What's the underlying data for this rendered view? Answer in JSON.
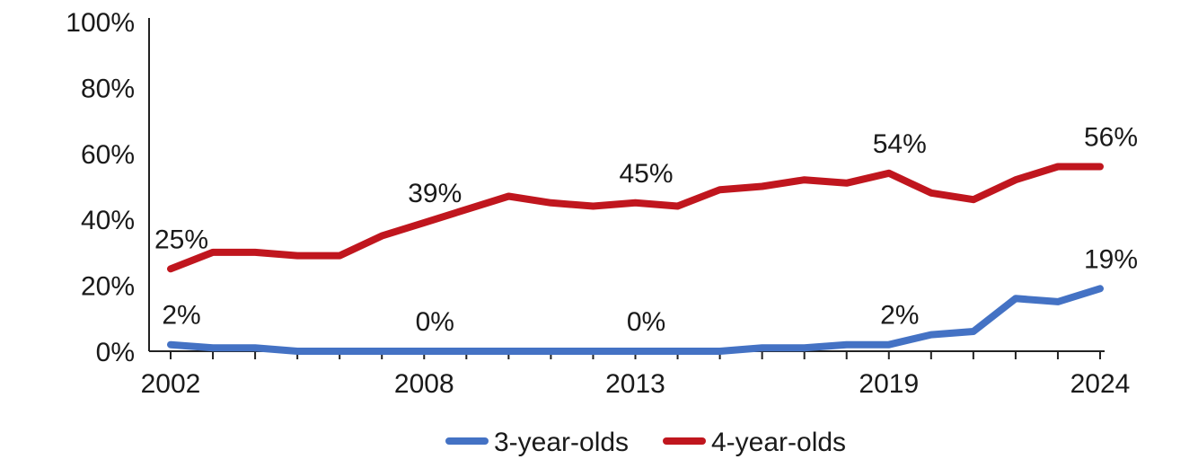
{
  "chart_data": {
    "type": "line",
    "title": "",
    "xlabel": "",
    "ylabel": "",
    "x": [
      2002,
      2003,
      2004,
      2005,
      2006,
      2007,
      2008,
      2009,
      2010,
      2011,
      2012,
      2013,
      2014,
      2015,
      2016,
      2017,
      2018,
      2019,
      2020,
      2021,
      2022,
      2023,
      2024
    ],
    "x_tick_labels": [
      "2002",
      "2008",
      "2013",
      "2019",
      "2024"
    ],
    "x_tick_values": [
      2002,
      2008,
      2013,
      2019,
      2024
    ],
    "ylim": [
      0,
      100
    ],
    "y_ticks": [
      0,
      20,
      40,
      60,
      80,
      100
    ],
    "y_tick_labels": [
      "0%",
      "20%",
      "40%",
      "60%",
      "80%",
      "100%"
    ],
    "grid": false,
    "legend_position": "bottom",
    "series": [
      {
        "name": "3-year-olds",
        "color": "#4472c4",
        "values": [
          2,
          1,
          1,
          0,
          0,
          0,
          0,
          0,
          0,
          0,
          0,
          0,
          0,
          0,
          1,
          1,
          2,
          2,
          5,
          6,
          16,
          15,
          19
        ],
        "labels": [
          {
            "x": 2002,
            "text": "2%"
          },
          {
            "x": 2008,
            "text": "0%"
          },
          {
            "x": 2013,
            "text": "0%"
          },
          {
            "x": 2019,
            "text": "2%"
          },
          {
            "x": 2024,
            "text": "19%"
          }
        ]
      },
      {
        "name": "4-year-olds",
        "color": "#c0161e",
        "values": [
          25,
          30,
          30,
          29,
          29,
          35,
          39,
          43,
          47,
          45,
          44,
          45,
          44,
          49,
          50,
          52,
          51,
          54,
          48,
          46,
          52,
          56,
          56
        ],
        "labels": [
          {
            "x": 2002,
            "text": "25%"
          },
          {
            "x": 2008,
            "text": "39%"
          },
          {
            "x": 2013,
            "text": "45%"
          },
          {
            "x": 2019,
            "text": "54%"
          },
          {
            "x": 2024,
            "text": "56%"
          }
        ]
      }
    ]
  }
}
